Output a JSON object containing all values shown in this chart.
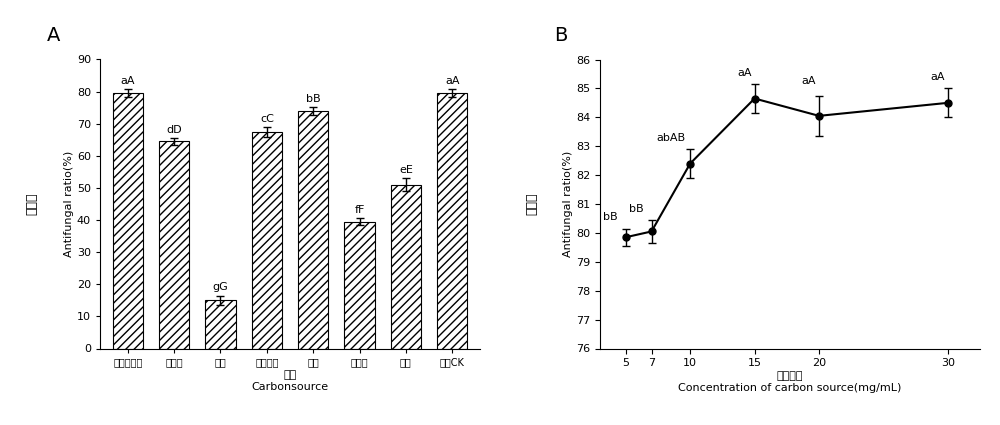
{
  "A": {
    "categories": [
      "可溶性淦粉",
      "麦芽糖",
      "木糖",
      "玉米淦粉",
      "蔗糖",
      "羊葉麦",
      "乳糖",
      "对照CK"
    ],
    "values": [
      79.5,
      64.5,
      15.0,
      67.5,
      74.0,
      39.5,
      51.0,
      79.5
    ],
    "errors": [
      1.2,
      1.0,
      1.5,
      1.5,
      1.2,
      1.0,
      2.0,
      1.2
    ],
    "labels": [
      "aA",
      "dD",
      "gG",
      "cC",
      "bB",
      "fF",
      "eE",
      "aA"
    ],
    "xlabel_cn": "碗源",
    "xlabel_en": "Carbonsource",
    "ylabel_cn": "抑菌率",
    "ylabel_en": "Antifungal ratio(%)",
    "ylim": [
      0,
      90
    ],
    "yticks": [
      0,
      10,
      20,
      30,
      40,
      50,
      60,
      70,
      80,
      90
    ],
    "title": "A"
  },
  "B": {
    "x": [
      5,
      7,
      10,
      15,
      20,
      30
    ],
    "values": [
      79.85,
      80.05,
      82.4,
      84.65,
      84.05,
      84.5
    ],
    "errors": [
      0.3,
      0.4,
      0.5,
      0.5,
      0.7,
      0.5
    ],
    "labels": [
      "bB",
      "bB",
      "abAB",
      "aA",
      "aA",
      "aA"
    ],
    "xlabel_cn": "碗源浓度",
    "xlabel_en": "Concentration of carbon source(mg/mL)",
    "ylabel_cn": "抑菌率",
    "ylabel_en": "Antifungal ratio(%)",
    "ylim": [
      76,
      86
    ],
    "yticks": [
      76,
      77,
      78,
      79,
      80,
      81,
      82,
      83,
      84,
      85,
      86
    ],
    "title": "B"
  }
}
